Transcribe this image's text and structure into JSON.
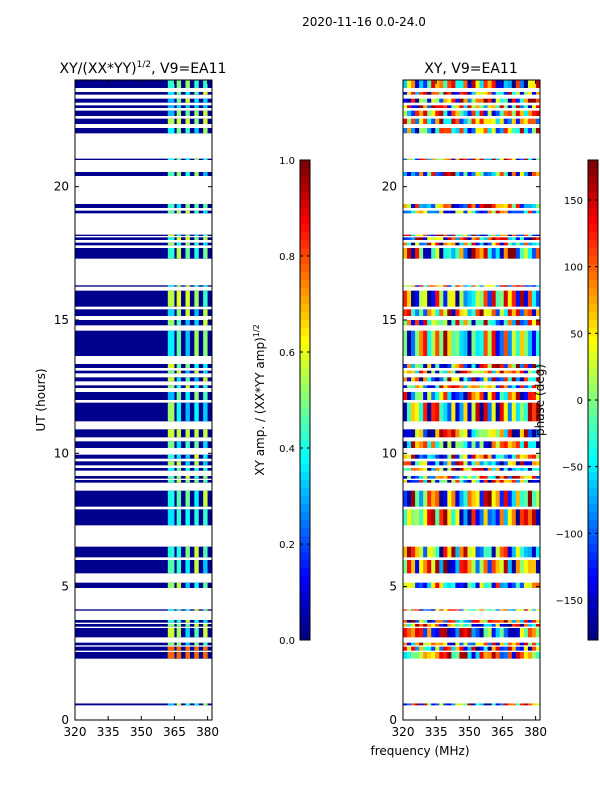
{
  "figure_title": "2020-11-16 0.0-24.0",
  "shared_xlabel": "frequency (MHz)",
  "chart_data": [
    {
      "type": "heatmap",
      "title": "XY/(XX*YY)^1/2, V9=EA11",
      "title_main": "XY/(XX*YY)",
      "title_exp": "1/2",
      "title_suffix": ", V9=EA11",
      "xlabel": "frequency (MHz)",
      "ylabel": "UT (hours)",
      "xlim": [
        320,
        382
      ],
      "ylim": [
        0,
        24
      ],
      "xticks": [
        320,
        335,
        350,
        365,
        380
      ],
      "yticks": [
        0,
        5,
        10,
        15,
        20
      ],
      "colorbar": {
        "label": "XY amp. / (XX*YY amp)^1/2",
        "label_main": "XY amp. / (XX*YY amp)",
        "label_exp": "1/2",
        "range": [
          0.0,
          1.0
        ],
        "ticks": [
          "0.0",
          "0.2",
          "0.4",
          "0.6",
          "0.8",
          "1.0"
        ],
        "tick_values": [
          0.0,
          0.2,
          0.4,
          0.6,
          0.8,
          1.0
        ],
        "colormap": "jet"
      },
      "data_bands_hours": [
        [
          0.55,
          0.62
        ],
        [
          2.3,
          2.55
        ],
        [
          2.6,
          2.75
        ],
        [
          2.8,
          2.9
        ],
        [
          3.1,
          3.45
        ],
        [
          3.5,
          3.6
        ],
        [
          3.65,
          3.75
        ],
        [
          4.1,
          4.15
        ],
        [
          4.95,
          5.15
        ],
        [
          5.5,
          6.0
        ],
        [
          6.1,
          6.5
        ],
        [
          7.3,
          7.9
        ],
        [
          8.0,
          8.6
        ],
        [
          8.9,
          9.0
        ],
        [
          9.05,
          9.15
        ],
        [
          9.35,
          9.45
        ],
        [
          9.55,
          9.7
        ],
        [
          9.8,
          9.95
        ],
        [
          10.2,
          10.45
        ],
        [
          10.6,
          10.9
        ],
        [
          11.2,
          11.9
        ],
        [
          12.0,
          12.3
        ],
        [
          12.45,
          12.55
        ],
        [
          12.7,
          12.85
        ],
        [
          13.0,
          13.1
        ],
        [
          13.2,
          13.35
        ],
        [
          13.65,
          14.6
        ],
        [
          14.8,
          15.0
        ],
        [
          15.15,
          15.4
        ],
        [
          15.5,
          16.1
        ],
        [
          16.25,
          16.3
        ],
        [
          17.3,
          17.7
        ],
        [
          17.8,
          17.9
        ],
        [
          18.0,
          18.1
        ],
        [
          18.15,
          18.2
        ],
        [
          19.0,
          19.1
        ],
        [
          19.2,
          19.35
        ],
        [
          20.4,
          20.55
        ],
        [
          21.0,
          21.05
        ],
        [
          22.0,
          22.2
        ],
        [
          22.35,
          22.55
        ],
        [
          22.65,
          22.85
        ],
        [
          22.95,
          23.05
        ],
        [
          23.15,
          23.3
        ],
        [
          23.45,
          23.55
        ],
        [
          23.7,
          24.0
        ]
      ],
      "highlight_columns_mhz": [
        [
          362,
          365
        ],
        [
          366,
          368
        ],
        [
          370,
          372
        ],
        [
          374,
          376
        ],
        [
          378,
          380
        ]
      ]
    },
    {
      "type": "heatmap",
      "title": "XY, V9=EA11",
      "xlabel": "frequency (MHz)",
      "ylabel": "",
      "xlim": [
        320,
        382
      ],
      "ylim": [
        0,
        24
      ],
      "xticks": [
        320,
        335,
        350,
        365,
        380
      ],
      "yticks": [
        0,
        5,
        10,
        15,
        20
      ],
      "colorbar": {
        "label": "phase (deg)",
        "range": [
          -180,
          180
        ],
        "ticks": [
          "−150",
          "−100",
          "−50",
          "0",
          "50",
          "100",
          "150"
        ],
        "tick_values": [
          -150,
          -100,
          -50,
          0,
          50,
          100,
          150
        ],
        "colormap": "jet"
      },
      "data_bands_hours": [
        [
          0.55,
          0.62
        ],
        [
          2.3,
          2.55
        ],
        [
          2.6,
          2.75
        ],
        [
          2.8,
          2.9
        ],
        [
          3.1,
          3.45
        ],
        [
          3.5,
          3.6
        ],
        [
          3.65,
          3.75
        ],
        [
          4.1,
          4.15
        ],
        [
          4.95,
          5.15
        ],
        [
          5.5,
          6.0
        ],
        [
          6.1,
          6.5
        ],
        [
          7.3,
          7.9
        ],
        [
          8.0,
          8.6
        ],
        [
          8.9,
          9.0
        ],
        [
          9.05,
          9.15
        ],
        [
          9.35,
          9.45
        ],
        [
          9.55,
          9.7
        ],
        [
          9.8,
          9.95
        ],
        [
          10.2,
          10.45
        ],
        [
          10.6,
          10.9
        ],
        [
          11.2,
          11.9
        ],
        [
          12.0,
          12.3
        ],
        [
          12.45,
          12.55
        ],
        [
          12.7,
          12.85
        ],
        [
          13.0,
          13.1
        ],
        [
          13.2,
          13.35
        ],
        [
          13.65,
          14.6
        ],
        [
          14.8,
          15.0
        ],
        [
          15.15,
          15.4
        ],
        [
          15.5,
          16.1
        ],
        [
          16.25,
          16.3
        ],
        [
          17.3,
          17.7
        ],
        [
          17.8,
          17.9
        ],
        [
          18.0,
          18.1
        ],
        [
          18.15,
          18.2
        ],
        [
          19.0,
          19.1
        ],
        [
          19.2,
          19.35
        ],
        [
          20.4,
          20.55
        ],
        [
          21.0,
          21.05
        ],
        [
          22.0,
          22.2
        ],
        [
          22.35,
          22.55
        ],
        [
          22.65,
          22.85
        ],
        [
          22.95,
          23.05
        ],
        [
          23.15,
          23.3
        ],
        [
          23.45,
          23.55
        ],
        [
          23.7,
          24.0
        ]
      ]
    }
  ]
}
